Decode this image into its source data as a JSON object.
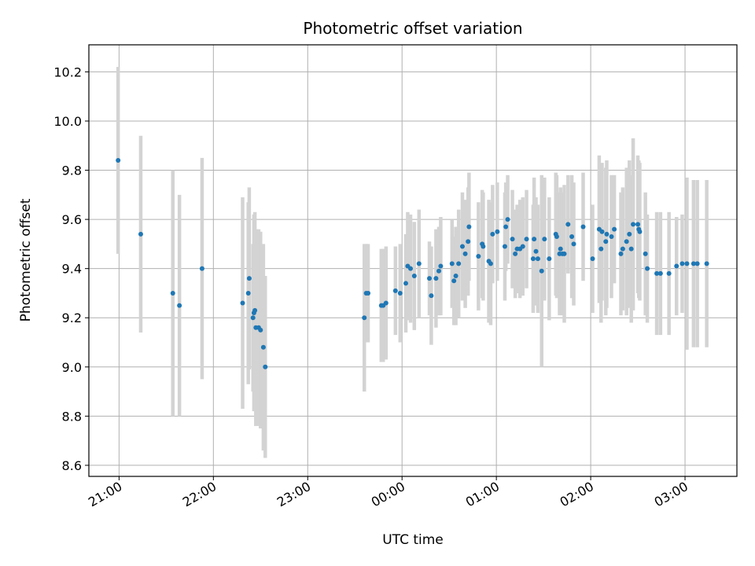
{
  "chart_data": {
    "type": "scatter",
    "title": "Photometric offset variation",
    "xlabel": "UTC time",
    "ylabel": "Photometric offset",
    "x_unit": "hours from 21:00 UTC",
    "xlim": [
      -0.32,
      6.55
    ],
    "ylim": [
      8.555,
      10.31
    ],
    "grid": true,
    "x_ticks": [
      {
        "value": 0,
        "label": "21:00"
      },
      {
        "value": 1,
        "label": "22:00"
      },
      {
        "value": 2,
        "label": "23:00"
      },
      {
        "value": 3,
        "label": "00:00"
      },
      {
        "value": 4,
        "label": "01:00"
      },
      {
        "value": 5,
        "label": "02:00"
      },
      {
        "value": 6,
        "label": "03:00"
      }
    ],
    "y_ticks": [
      {
        "value": 8.6,
        "label": "8.6"
      },
      {
        "value": 8.8,
        "label": "8.8"
      },
      {
        "value": 9.0,
        "label": "9.0"
      },
      {
        "value": 9.2,
        "label": "9.2"
      },
      {
        "value": 9.4,
        "label": "9.4"
      },
      {
        "value": 9.6,
        "label": "9.6"
      },
      {
        "value": 9.8,
        "label": "9.8"
      },
      {
        "value": 10.0,
        "label": "10.0"
      },
      {
        "value": 10.2,
        "label": "10.2"
      }
    ],
    "colors": {
      "points": "#1f77b4",
      "errorbars": "#d3d3d3",
      "grid": "#b0b0b0"
    },
    "series": [
      {
        "name": "",
        "points": [
          [
            -0.01,
            9.84,
            0.38
          ],
          [
            0.23,
            9.54,
            0.4
          ],
          [
            0.57,
            9.3,
            0.5
          ],
          [
            0.64,
            9.25,
            0.45
          ],
          [
            0.88,
            9.4,
            0.45
          ],
          [
            1.31,
            9.26,
            0.43
          ],
          [
            1.37,
            9.3,
            0.37
          ],
          [
            1.38,
            9.36,
            0.37
          ],
          [
            1.42,
            9.2,
            0.3
          ],
          [
            1.43,
            9.22,
            0.4
          ],
          [
            1.44,
            9.23,
            0.4
          ],
          [
            1.45,
            9.16,
            0.4
          ],
          [
            1.48,
            9.16,
            0.4
          ],
          [
            1.5,
            9.15,
            0.4
          ],
          [
            1.53,
            9.08,
            0.42
          ],
          [
            1.55,
            9.0,
            0.37
          ],
          [
            2.6,
            9.2,
            0.3
          ],
          [
            2.62,
            9.3,
            0.2
          ],
          [
            2.64,
            9.3,
            0.2
          ],
          [
            2.78,
            9.25,
            0.23
          ],
          [
            2.8,
            9.25,
            0.23
          ],
          [
            2.83,
            9.26,
            0.23
          ],
          [
            2.93,
            9.31,
            0.18
          ],
          [
            2.98,
            9.3,
            0.2
          ],
          [
            3.04,
            9.34,
            0.2
          ],
          [
            3.06,
            9.41,
            0.22
          ],
          [
            3.09,
            9.4,
            0.22
          ],
          [
            3.13,
            9.37,
            0.22
          ],
          [
            3.18,
            9.42,
            0.22
          ],
          [
            3.29,
            9.36,
            0.15
          ],
          [
            3.31,
            9.29,
            0.2
          ],
          [
            3.36,
            9.36,
            0.2
          ],
          [
            3.39,
            9.39,
            0.18
          ],
          [
            3.41,
            9.41,
            0.2
          ],
          [
            3.53,
            9.42,
            0.18
          ],
          [
            3.55,
            9.35,
            0.18
          ],
          [
            3.57,
            9.37,
            0.2
          ],
          [
            3.6,
            9.42,
            0.22
          ],
          [
            3.64,
            9.49,
            0.22
          ],
          [
            3.67,
            9.46,
            0.22
          ],
          [
            3.7,
            9.51,
            0.22
          ],
          [
            3.71,
            9.57,
            0.22
          ],
          [
            3.81,
            9.45,
            0.22
          ],
          [
            3.85,
            9.5,
            0.22
          ],
          [
            3.86,
            9.49,
            0.22
          ],
          [
            3.92,
            9.43,
            0.25
          ],
          [
            3.94,
            9.42,
            0.25
          ],
          [
            3.96,
            9.54,
            0.2
          ],
          [
            4.01,
            9.55,
            0.2
          ],
          [
            4.09,
            9.49,
            0.22
          ],
          [
            4.1,
            9.57,
            0.18
          ],
          [
            4.12,
            9.6,
            0.18
          ],
          [
            4.17,
            9.52,
            0.2
          ],
          [
            4.2,
            9.46,
            0.18
          ],
          [
            4.22,
            9.48,
            0.18
          ],
          [
            4.25,
            9.48,
            0.2
          ],
          [
            4.28,
            9.49,
            0.2
          ],
          [
            4.32,
            9.52,
            0.2
          ],
          [
            4.39,
            9.44,
            0.22
          ],
          [
            4.4,
            9.52,
            0.25
          ],
          [
            4.42,
            9.47,
            0.22
          ],
          [
            4.44,
            9.44,
            0.22
          ],
          [
            4.48,
            9.39,
            0.39
          ],
          [
            4.51,
            9.52,
            0.25
          ],
          [
            4.56,
            9.44,
            0.25
          ],
          [
            4.63,
            9.54,
            0.25
          ],
          [
            4.64,
            9.53,
            0.25
          ],
          [
            4.67,
            9.46,
            0.25
          ],
          [
            4.68,
            9.48,
            0.25
          ],
          [
            4.7,
            9.46,
            0.25
          ],
          [
            4.72,
            9.46,
            0.28
          ],
          [
            4.76,
            9.58,
            0.2
          ],
          [
            4.8,
            9.53,
            0.25
          ],
          [
            4.82,
            9.5,
            0.25
          ],
          [
            4.92,
            9.57,
            0.22
          ],
          [
            5.02,
            9.44,
            0.22
          ],
          [
            5.09,
            9.56,
            0.3
          ],
          [
            5.11,
            9.48,
            0.3
          ],
          [
            5.12,
            9.55,
            0.28
          ],
          [
            5.16,
            9.51,
            0.3
          ],
          [
            5.17,
            9.54,
            0.3
          ],
          [
            5.22,
            9.53,
            0.25
          ],
          [
            5.25,
            9.56,
            0.22
          ],
          [
            5.32,
            9.46,
            0.25
          ],
          [
            5.34,
            9.48,
            0.25
          ],
          [
            5.38,
            9.51,
            0.3
          ],
          [
            5.41,
            9.54,
            0.3
          ],
          [
            5.43,
            9.48,
            0.3
          ],
          [
            5.45,
            9.58,
            0.35
          ],
          [
            5.5,
            9.58,
            0.28
          ],
          [
            5.51,
            9.56,
            0.28
          ],
          [
            5.52,
            9.55,
            0.28
          ],
          [
            5.58,
            9.46,
            0.25
          ],
          [
            5.6,
            9.4,
            0.22
          ],
          [
            5.7,
            9.38,
            0.25
          ],
          [
            5.74,
            9.38,
            0.25
          ],
          [
            5.83,
            9.38,
            0.25
          ],
          [
            5.91,
            9.41,
            0.2
          ],
          [
            5.97,
            9.42,
            0.2
          ],
          [
            6.02,
            9.42,
            0.35
          ],
          [
            6.09,
            9.42,
            0.34
          ],
          [
            6.13,
            9.42,
            0.34
          ],
          [
            6.23,
            9.42,
            0.34
          ]
        ]
      }
    ]
  }
}
